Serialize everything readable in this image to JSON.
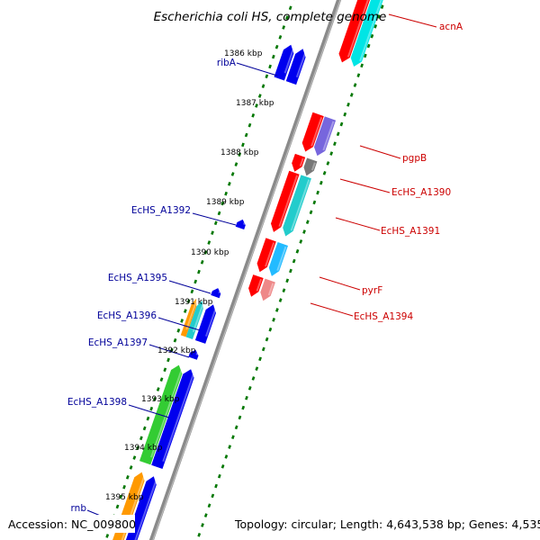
{
  "title": "Escherichia coli HS, complete genome",
  "accession": "Accession: NC_009800",
  "topology": "Topology: circular; Length: 4,643,538 bp; Genes: 4,535",
  "colors": {
    "red": "#ff0000",
    "cyan": "#00e5e5",
    "blue": "#0000ee",
    "purple": "#7766dd",
    "gray": "#777777",
    "pink": "#ee8888",
    "lightblue": "#22bbff",
    "orange": "#ff9900",
    "green": "#33cc33",
    "teal": "#22cccc",
    "backbone": "#888888",
    "tick": "#007700",
    "red_label": "#cc0000",
    "blue_label": "#000099"
  },
  "kbp_labels": [
    "1386 kbp",
    "1387 kbp",
    "1388 kbp",
    "1389 kbp",
    "1390 kbp",
    "1391 kbp",
    "1392 kbp",
    "1393 kbp",
    "1394 kbp",
    "1395 kbp"
  ],
  "genes_right": [
    {
      "name": "acnA",
      "color": "red"
    },
    {
      "name": "pgpB",
      "color": "purple"
    },
    {
      "name": "EcHS_A1390",
      "color": "gray"
    },
    {
      "name": "EcHS_A1391",
      "color": "red"
    },
    {
      "name": "pyrF",
      "color": "lightblue"
    },
    {
      "name": "EcHS_A1394",
      "color": "pink"
    }
  ],
  "genes_left": [
    {
      "name": "ribA",
      "color": "blue"
    },
    {
      "name": "EcHS_A1392",
      "color": "blue"
    },
    {
      "name": "EcHS_A1395",
      "color": "blue"
    },
    {
      "name": "EcHS_A1396",
      "color": "orange"
    },
    {
      "name": "EcHS_A1397",
      "color": "blue"
    },
    {
      "name": "EcHS_A1398",
      "color": "green"
    },
    {
      "name": "rnb",
      "color": "blue"
    }
  ]
}
